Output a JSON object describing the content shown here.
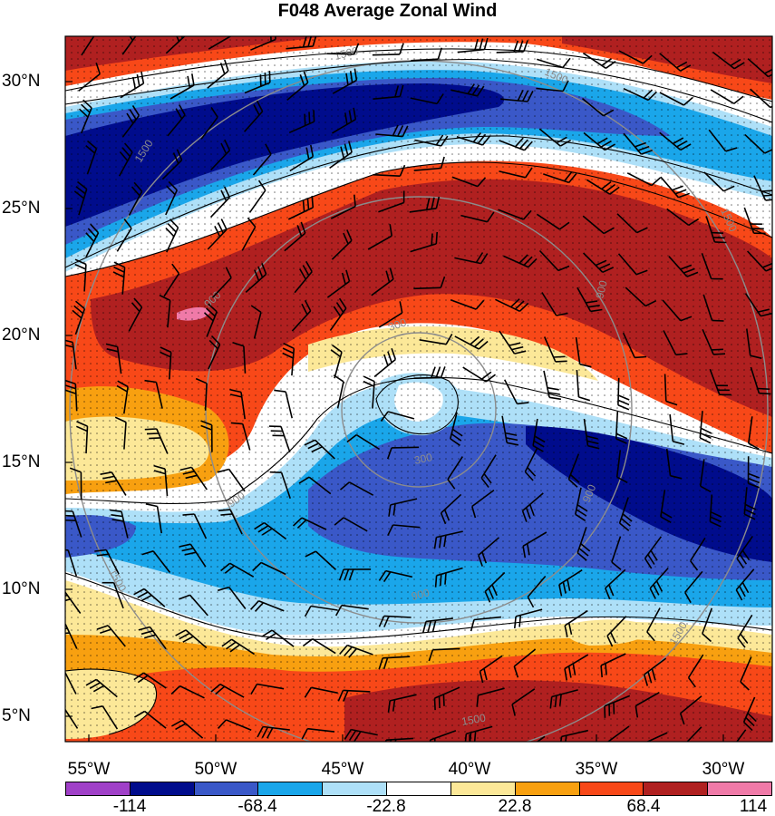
{
  "title": "F048 Average Zonal Wind",
  "lat_labels": [
    "30°N",
    "25°N",
    "20°N",
    "15°N",
    "10°N",
    "5°N"
  ],
  "lon_labels": [
    "55°W",
    "50°W",
    "45°W",
    "40°W",
    "35°W",
    "30°W"
  ],
  "contour_labels": [
    "1500",
    "1500",
    "1500",
    "1500",
    "1500",
    "900",
    "900",
    "900",
    "900",
    "300",
    "300",
    "900",
    "1500",
    "1500"
  ],
  "colorbar": {
    "colors": [
      "#a040c8",
      "#000c8c",
      "#3a58c8",
      "#1aa6ea",
      "#aee0f8",
      "#ffffff",
      "#fce898",
      "#f8a010",
      "#f84818",
      "#b02020",
      "#f07aa8"
    ],
    "labels": [
      "-114",
      "-68.4",
      "-22.8",
      "22.8",
      "68.4",
      "114"
    ]
  },
  "stipple_color": "#000000",
  "grid_ring_color": "#8c8c8c"
}
